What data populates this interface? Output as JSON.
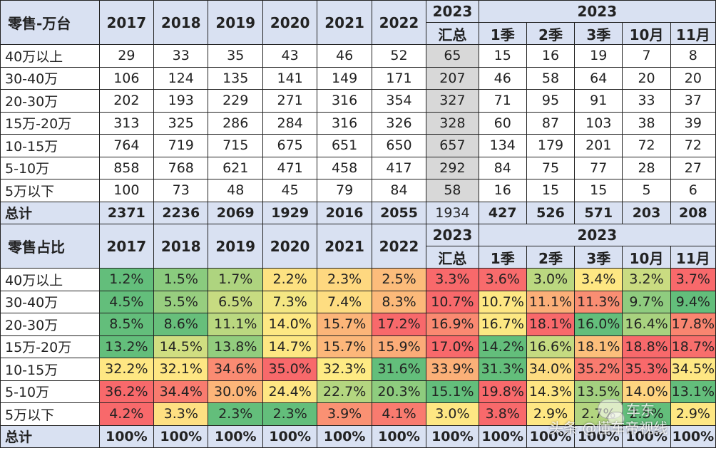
{
  "section1": {
    "corner": "零售-万台",
    "years": [
      "2017",
      "2018",
      "2019",
      "2020",
      "2021",
      "2022"
    ],
    "year2023": "2023",
    "sum_label": "汇总",
    "periods_group": "2023",
    "periods": [
      "1季",
      "2季",
      "3季",
      "10月",
      "11月"
    ],
    "rows": [
      {
        "label": "40万以上",
        "values": [
          "29",
          "33",
          "35",
          "43",
          "46",
          "52",
          "65",
          "15",
          "16",
          "19",
          "7",
          "8"
        ]
      },
      {
        "label": "30-40万",
        "values": [
          "106",
          "124",
          "135",
          "141",
          "149",
          "171",
          "207",
          "46",
          "58",
          "64",
          "20",
          "20"
        ]
      },
      {
        "label": "20-30万",
        "values": [
          "202",
          "193",
          "229",
          "271",
          "316",
          "354",
          "327",
          "71",
          "95",
          "91",
          "33",
          "37"
        ]
      },
      {
        "label": "15万-20万",
        "values": [
          "313",
          "325",
          "286",
          "284",
          "316",
          "326",
          "328",
          "60",
          "87",
          "103",
          "38",
          "39"
        ]
      },
      {
        "label": "10-15万",
        "values": [
          "764",
          "719",
          "715",
          "675",
          "651",
          "650",
          "657",
          "134",
          "179",
          "201",
          "72",
          "72"
        ]
      },
      {
        "label": "5-10万",
        "values": [
          "858",
          "768",
          "621",
          "471",
          "458",
          "417",
          "292",
          "84",
          "75",
          "77",
          "28",
          "27"
        ]
      },
      {
        "label": "5万以下",
        "values": [
          "100",
          "73",
          "48",
          "45",
          "79",
          "84",
          "58",
          "16",
          "15",
          "15",
          "5",
          "6"
        ]
      }
    ],
    "total": {
      "label": "总计",
      "values": [
        "2371",
        "2236",
        "2069",
        "1929",
        "2016",
        "2055",
        "1934",
        "427",
        "526",
        "571",
        "203",
        "208"
      ]
    }
  },
  "section2": {
    "corner": "零售占比",
    "years": [
      "2017",
      "2018",
      "2019",
      "2020",
      "2021",
      "2022"
    ],
    "year2023": "2023",
    "sum_label": "汇总",
    "periods_group": "2023",
    "periods": [
      "1季",
      "2季",
      "3季",
      "10月",
      "11月"
    ],
    "rows": [
      {
        "label": "40万以上",
        "values": [
          "1.2%",
          "1.5%",
          "1.7%",
          "2.2%",
          "2.3%",
          "2.5%",
          "3.3%",
          "3.6%",
          "3.0%",
          "3.4%",
          "3.2%",
          "3.7%"
        ],
        "colors": [
          "#63be7b",
          "#8acb7e",
          "#aed47f",
          "#fde281",
          "#fed880",
          "#fcbc7b",
          "#f8696b",
          "#f86b6c",
          "#bbd880",
          "#fee783",
          "#cadc81",
          "#f8696b"
        ]
      },
      {
        "label": "30-40万",
        "values": [
          "4.5%",
          "5.5%",
          "6.5%",
          "7.3%",
          "7.4%",
          "8.3%",
          "10.7%",
          "10.7%",
          "11.1%",
          "11.3%",
          "9.7%",
          "9.4%"
        ],
        "colors": [
          "#63be7b",
          "#97ce7f",
          "#c7db81",
          "#f4e783",
          "#fedd81",
          "#fcb97a",
          "#f8696b",
          "#fee783",
          "#fbaf78",
          "#f98e73",
          "#8fcc7f",
          "#63be7b"
        ]
      },
      {
        "label": "20-30万",
        "values": [
          "8.5%",
          "8.6%",
          "11.1%",
          "14.0%",
          "15.7%",
          "17.2%",
          "16.9%",
          "16.7%",
          "18.1%",
          "16.0%",
          "16.4%",
          "17.8%"
        ],
        "colors": [
          "#63be7b",
          "#67bf7b",
          "#bad880",
          "#fee883",
          "#fcb579",
          "#f8696b",
          "#fa8971",
          "#fde883",
          "#f8696b",
          "#63be7b",
          "#a8d27f",
          "#f98570"
        ]
      },
      {
        "label": "15万-20万",
        "values": [
          "13.2%",
          "14.5%",
          "13.8%",
          "14.7%",
          "15.7%",
          "15.9%",
          "17.0%",
          "14.2%",
          "16.6%",
          "18.1%",
          "18.8%",
          "18.7%"
        ],
        "colors": [
          "#63be7b",
          "#d0de81",
          "#92cd7e",
          "#fde783",
          "#fcb77a",
          "#fbac78",
          "#f8696b",
          "#63be7b",
          "#c5db81",
          "#fcbf7b",
          "#f8696b",
          "#f86e6c"
        ]
      },
      {
        "label": "10-15万",
        "values": [
          "32.2%",
          "32.1%",
          "34.6%",
          "35.0%",
          "32.3%",
          "31.6%",
          "33.9%",
          "31.3%",
          "34.0%",
          "35.2%",
          "35.3%",
          "34.5%"
        ],
        "colors": [
          "#fee783",
          "#fee683",
          "#fa8b72",
          "#f8696b",
          "#feeb84",
          "#63be7b",
          "#fbb078",
          "#63be7b",
          "#fddc81",
          "#f97b6f",
          "#f8696b",
          "#fee783"
        ]
      },
      {
        "label": "5-10万",
        "values": [
          "36.2%",
          "34.4%",
          "30.0%",
          "24.4%",
          "22.7%",
          "20.3%",
          "15.1%",
          "19.8%",
          "14.3%",
          "13.5%",
          "14.0%",
          "13.1%"
        ],
        "colors": [
          "#f8696b",
          "#f97b6f",
          "#fcb579",
          "#fee683",
          "#b4d680",
          "#8ecc7e",
          "#63be7b",
          "#f8696b",
          "#fee683",
          "#a3d07f",
          "#fed480",
          "#63be7b"
        ]
      },
      {
        "label": "5万以下",
        "values": [
          "4.2%",
          "3.3%",
          "2.3%",
          "2.3%",
          "3.9%",
          "4.1%",
          "3.0%",
          "3.8%",
          "2.9%",
          "2.7%",
          "2.5%",
          "2.9%"
        ],
        "colors": [
          "#f8696b",
          "#fee082",
          "#63be7b",
          "#63be7b",
          "#fa9173",
          "#f97b6f",
          "#fee783",
          "#f8696b",
          "#fee783",
          "#b3d580",
          "#63be7b",
          "#fee783"
        ]
      }
    ],
    "total": {
      "label": "总计",
      "values": [
        "100%",
        "100%",
        "100%",
        "100%",
        "100%",
        "100%",
        "100%",
        "100%",
        "100%",
        "100%",
        "100%",
        "100%"
      ]
    }
  },
  "watermark": {
    "text": "头条 @懂车帝视线",
    "top_text": "车东"
  }
}
